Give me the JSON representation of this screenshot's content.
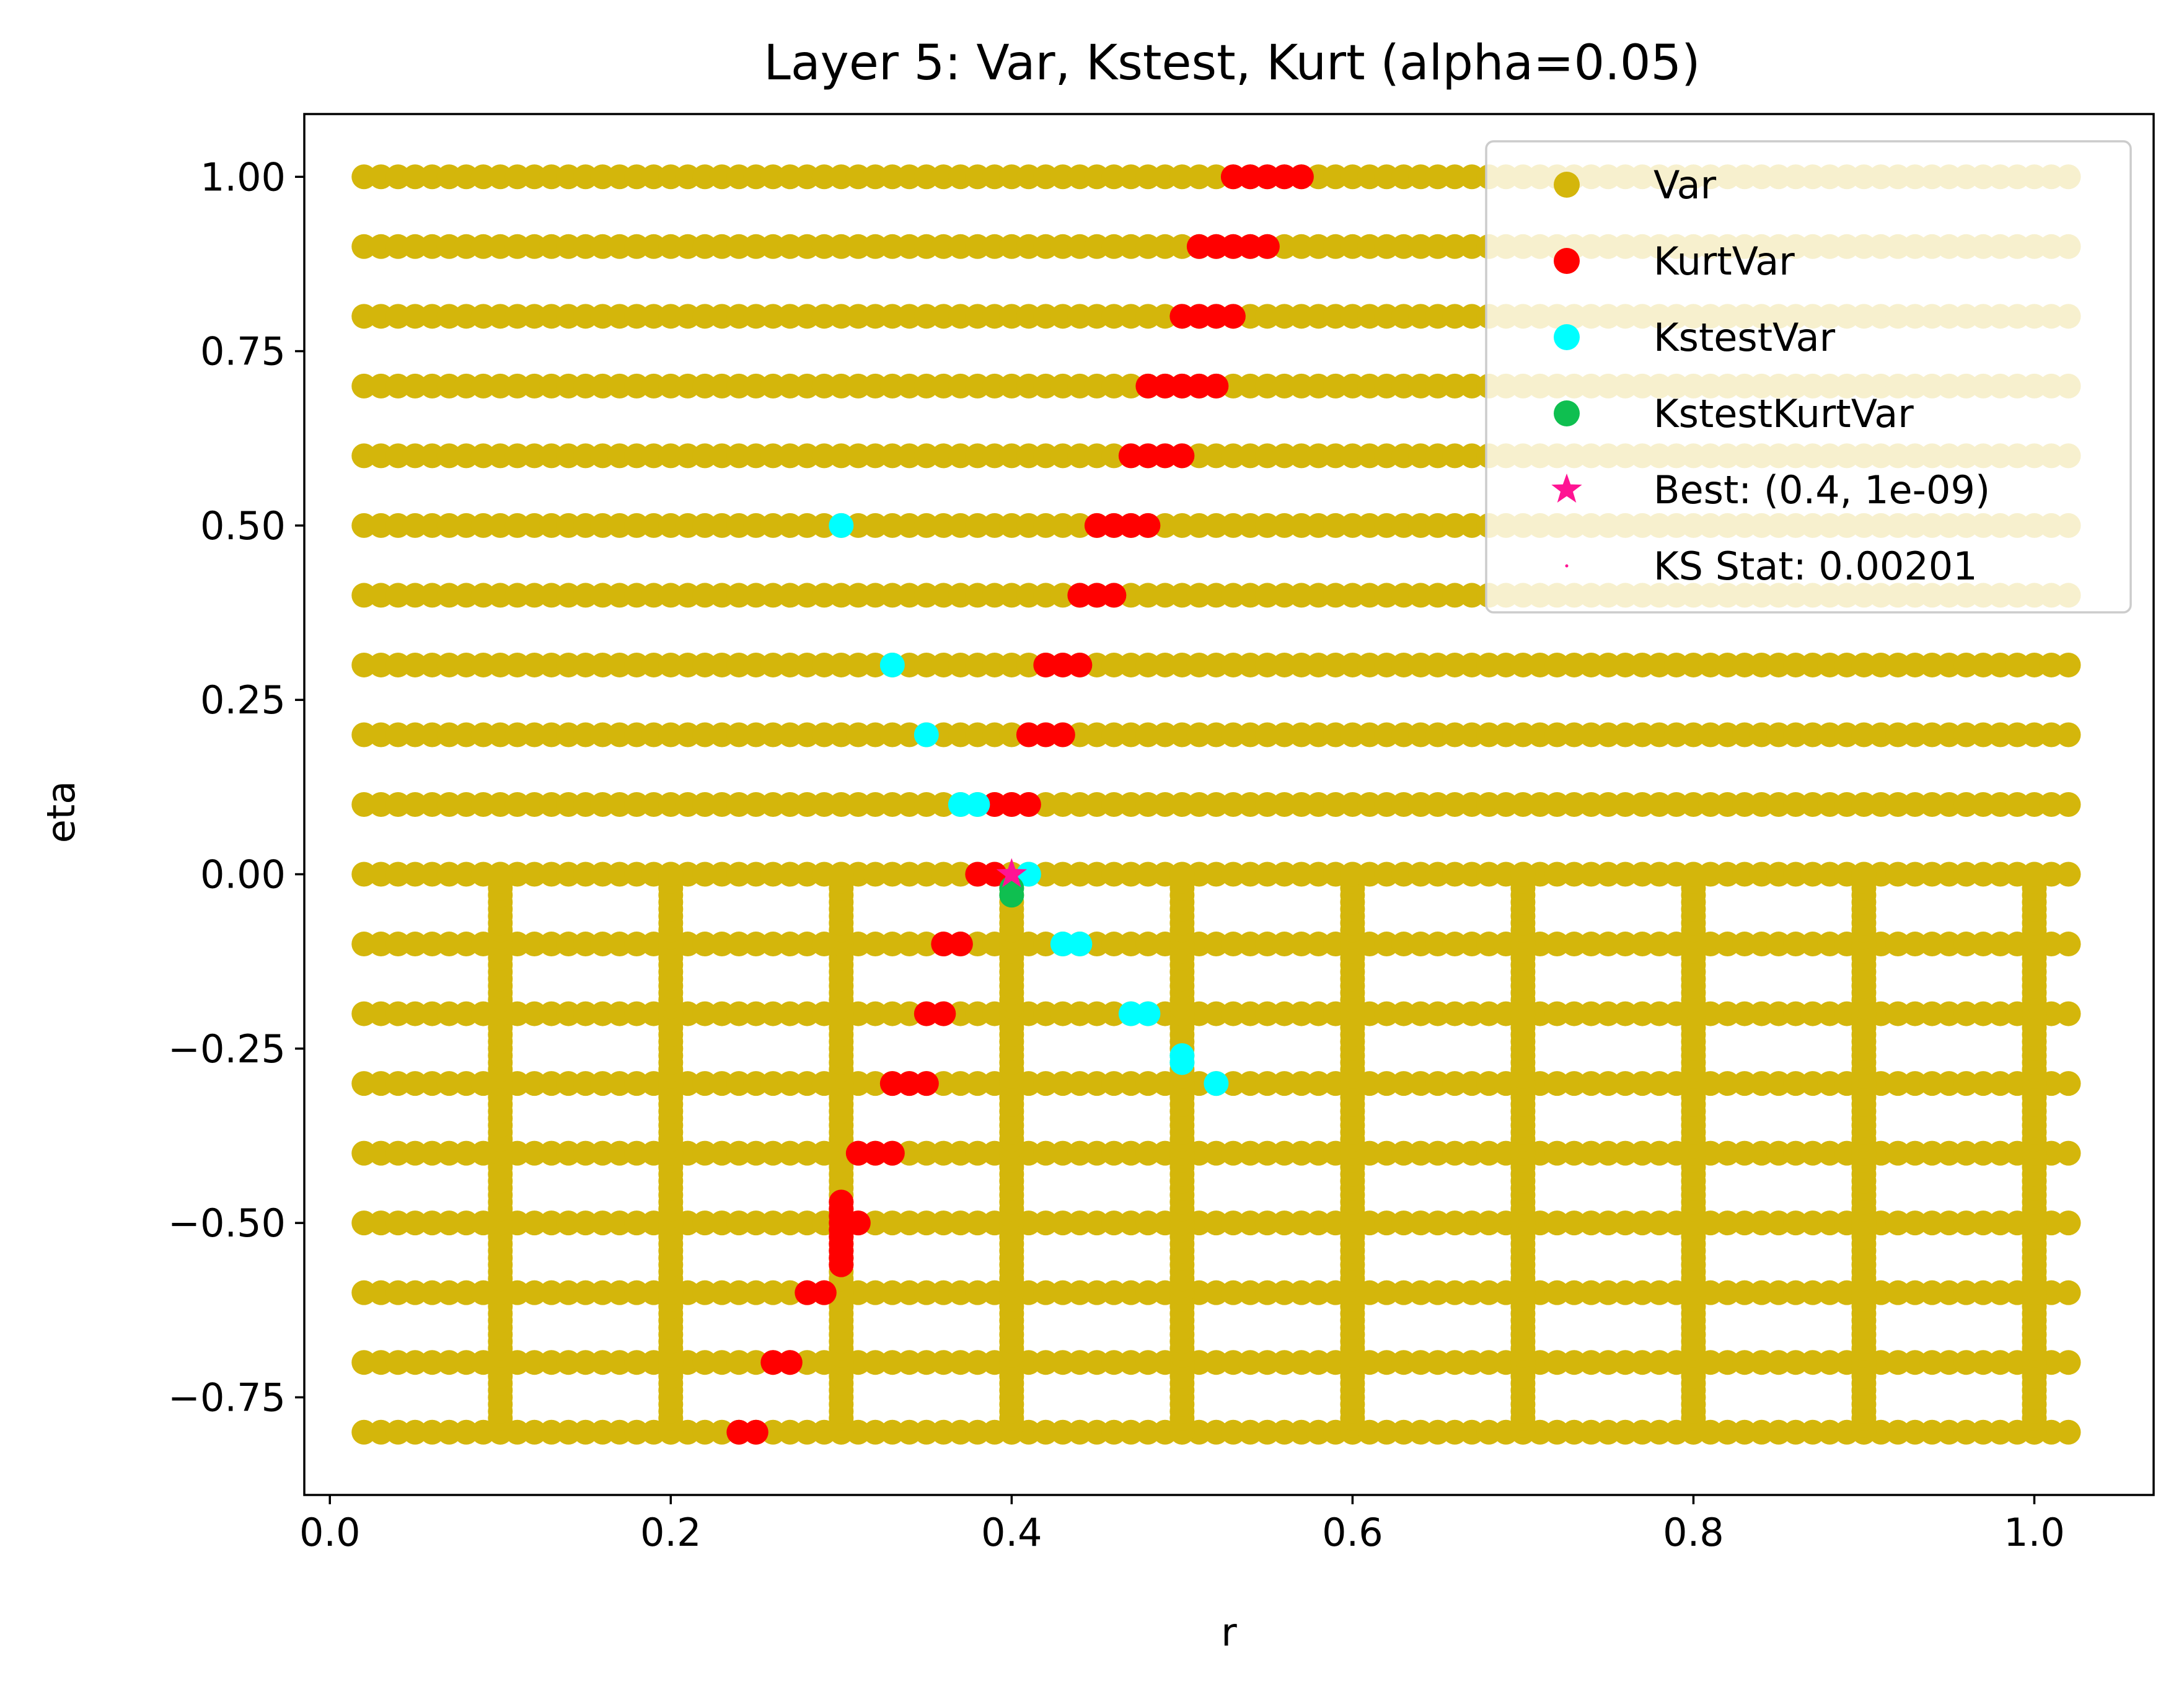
{
  "chart_data": {
    "type": "scatter",
    "title": "Layer 5: Var, Kstest, Kurt (alpha=0.05)",
    "xlabel": "r",
    "ylabel": "eta",
    "xlim": [
      -0.015,
      1.07
    ],
    "ylim": [
      -0.89,
      1.09
    ],
    "x_ticks": [
      0.0,
      0.2,
      0.4,
      0.6,
      0.8,
      1.0
    ],
    "x_tick_labels": [
      "0.0",
      "0.2",
      "0.4",
      "0.6",
      "0.8",
      "1.0"
    ],
    "y_ticks": [
      1.0,
      0.75,
      0.5,
      0.25,
      0.0,
      -0.25,
      -0.5,
      -0.75
    ],
    "y_tick_labels": [
      "1.00",
      "0.75",
      "0.50",
      "0.25",
      "0.00",
      "−0.25",
      "−0.50",
      "−0.75"
    ],
    "grid": false,
    "legend_position": "top-right",
    "var_grid": {
      "eta_rows": [
        1.0,
        0.9,
        0.8,
        0.7,
        0.6,
        0.5,
        0.4,
        0.3,
        0.2,
        0.1,
        0.0,
        -0.1,
        -0.2,
        -0.3,
        -0.4,
        -0.5,
        -0.6,
        -0.7,
        -0.8
      ],
      "r_min": 0.02,
      "r_max": 1.02,
      "r_step": 0.01,
      "r_columns": [
        0.1,
        0.2,
        0.3,
        0.4,
        0.5,
        0.6,
        0.7,
        0.8,
        0.9,
        1.0
      ],
      "column_eta_min": -0.8,
      "column_eta_max": 0.0,
      "column_eta_step": 0.01
    },
    "series": [
      {
        "name": "Var",
        "color": "#d4b60b",
        "marker": "circle"
      },
      {
        "name": "KurtVar",
        "color": "#ff0000",
        "marker": "circle",
        "points": [
          [
            0.53,
            1.0
          ],
          [
            0.54,
            1.0
          ],
          [
            0.55,
            1.0
          ],
          [
            0.56,
            1.0
          ],
          [
            0.57,
            1.0
          ],
          [
            0.51,
            0.9
          ],
          [
            0.52,
            0.9
          ],
          [
            0.53,
            0.9
          ],
          [
            0.54,
            0.9
          ],
          [
            0.55,
            0.9
          ],
          [
            0.5,
            0.8
          ],
          [
            0.51,
            0.8
          ],
          [
            0.52,
            0.8
          ],
          [
            0.53,
            0.8
          ],
          [
            0.48,
            0.7
          ],
          [
            0.49,
            0.7
          ],
          [
            0.5,
            0.7
          ],
          [
            0.51,
            0.7
          ],
          [
            0.52,
            0.7
          ],
          [
            0.47,
            0.6
          ],
          [
            0.48,
            0.6
          ],
          [
            0.49,
            0.6
          ],
          [
            0.5,
            0.6
          ],
          [
            0.45,
            0.5
          ],
          [
            0.46,
            0.5
          ],
          [
            0.47,
            0.5
          ],
          [
            0.48,
            0.5
          ],
          [
            0.44,
            0.4
          ],
          [
            0.45,
            0.4
          ],
          [
            0.46,
            0.4
          ],
          [
            0.42,
            0.3
          ],
          [
            0.43,
            0.3
          ],
          [
            0.44,
            0.3
          ],
          [
            0.41,
            0.2
          ],
          [
            0.42,
            0.2
          ],
          [
            0.43,
            0.2
          ],
          [
            0.39,
            0.1
          ],
          [
            0.4,
            0.1
          ],
          [
            0.41,
            0.1
          ],
          [
            0.38,
            0.0
          ],
          [
            0.39,
            0.0
          ],
          [
            0.36,
            -0.1
          ],
          [
            0.37,
            -0.1
          ],
          [
            0.35,
            -0.2
          ],
          [
            0.36,
            -0.2
          ],
          [
            0.33,
            -0.3
          ],
          [
            0.34,
            -0.3
          ],
          [
            0.35,
            -0.3
          ],
          [
            0.31,
            -0.4
          ],
          [
            0.32,
            -0.4
          ],
          [
            0.33,
            -0.4
          ],
          [
            0.3,
            -0.47
          ],
          [
            0.3,
            -0.48
          ],
          [
            0.3,
            -0.49
          ],
          [
            0.3,
            -0.5
          ],
          [
            0.3,
            -0.51
          ],
          [
            0.3,
            -0.52
          ],
          [
            0.3,
            -0.53
          ],
          [
            0.3,
            -0.54
          ],
          [
            0.3,
            -0.55
          ],
          [
            0.3,
            -0.56
          ],
          [
            0.31,
            -0.5
          ],
          [
            0.28,
            -0.6
          ],
          [
            0.29,
            -0.6
          ],
          [
            0.26,
            -0.7
          ],
          [
            0.27,
            -0.7
          ],
          [
            0.24,
            -0.8
          ],
          [
            0.25,
            -0.8
          ]
        ]
      },
      {
        "name": "KstestVar",
        "color": "#00ffff",
        "marker": "circle",
        "points": [
          [
            0.3,
            0.5
          ],
          [
            0.33,
            0.3
          ],
          [
            0.35,
            0.2
          ],
          [
            0.37,
            0.1
          ],
          [
            0.38,
            0.1
          ],
          [
            0.41,
            0.0
          ],
          [
            0.43,
            -0.1
          ],
          [
            0.44,
            -0.1
          ],
          [
            0.47,
            -0.2
          ],
          [
            0.48,
            -0.2
          ],
          [
            0.5,
            -0.26
          ],
          [
            0.5,
            -0.27
          ],
          [
            0.52,
            -0.3
          ]
        ]
      },
      {
        "name": "KstestKurtVar",
        "color": "#0fbf50",
        "marker": "circle",
        "points": [
          [
            0.4,
            -0.02
          ],
          [
            0.4,
            -0.03
          ]
        ]
      },
      {
        "name": "Best: (0.4, 1e-09)",
        "color": "#ff1493",
        "marker": "star",
        "points": [
          [
            0.4,
            1e-09
          ]
        ]
      },
      {
        "name": "KS Stat: 0.00201",
        "color": "#ff1493",
        "marker": "point"
      }
    ]
  }
}
